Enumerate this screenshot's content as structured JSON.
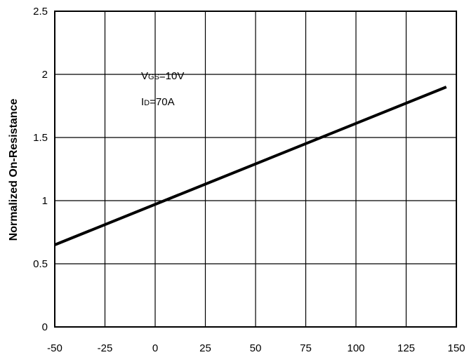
{
  "chart_data": {
    "type": "line",
    "title": "",
    "xlabel": "",
    "ylabel": "Normalized On-Resistance",
    "xlim": [
      -50,
      150
    ],
    "ylim": [
      0,
      2.5
    ],
    "x_ticks": [
      "-50",
      "-25",
      "0",
      "25",
      "50",
      "75",
      "100",
      "125",
      "150"
    ],
    "y_ticks": [
      "0",
      "0.5",
      "1",
      "1.5",
      "2",
      "2.5"
    ],
    "grid": true,
    "series": [
      {
        "x": [
          -50,
          145
        ],
        "y": [
          0.65,
          1.9
        ]
      }
    ],
    "annotations": [
      {
        "main": "V",
        "sub": "GS",
        "rest": "=10V"
      },
      {
        "main": "I",
        "sub": "D",
        "rest": "=70A"
      }
    ]
  }
}
